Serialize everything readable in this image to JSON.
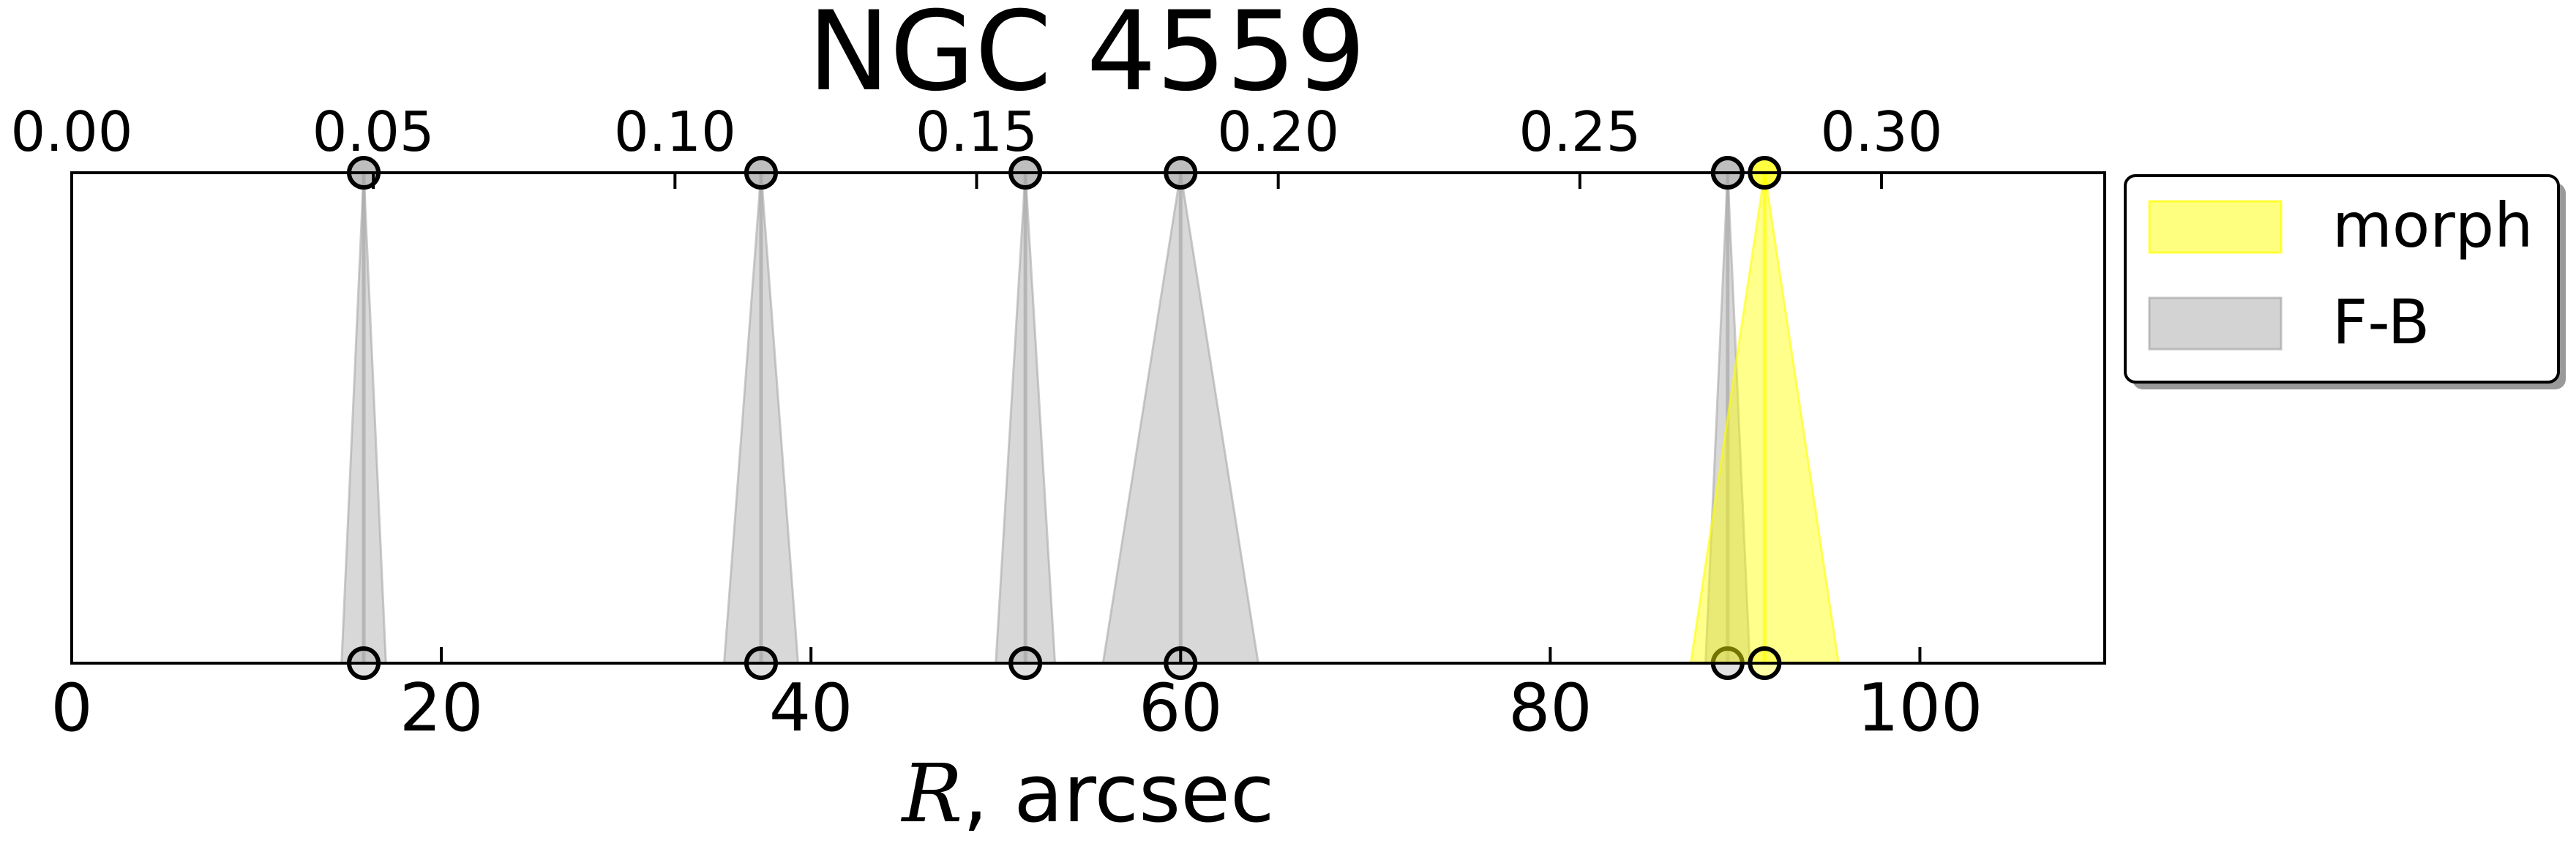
{
  "chart_data": {
    "type": "area",
    "title": "NGC 4559",
    "xlabel_var": "R",
    "xlabel_rest": ", arcsec",
    "xlim": [
      0,
      110
    ],
    "xticks": [
      0,
      20,
      40,
      60,
      80,
      100
    ],
    "xtick_labels": [
      "0",
      "20",
      "40",
      "60",
      "80",
      "100"
    ],
    "top_xlim": [
      0.0,
      0.337
    ],
    "top_xticks": [
      0.0,
      0.05,
      0.1,
      0.15,
      0.2,
      0.25,
      0.3
    ],
    "top_xtick_labels": [
      "0.00",
      "0.05",
      "0.10",
      "0.15",
      "0.20",
      "0.25",
      "0.30"
    ],
    "grid": false,
    "legend_position": "outside-right-top",
    "series": [
      {
        "name": "F-B",
        "color": "#a8a8a8",
        "items": [
          {
            "r": 15.8,
            "err": 1.2
          },
          {
            "r": 37.3,
            "err": 2.0
          },
          {
            "r": 51.6,
            "err": 1.6
          },
          {
            "r": 60.0,
            "err": 4.2
          },
          {
            "r": 89.6,
            "err": 1.2
          }
        ]
      },
      {
        "name": "morph",
        "color": "#ffff00",
        "items": [
          {
            "r": 91.6,
            "err": 4.0
          }
        ]
      }
    ]
  }
}
